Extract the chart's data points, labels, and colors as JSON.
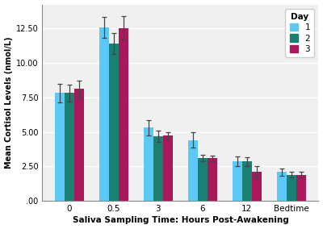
{
  "categories": [
    "0",
    "0.5",
    "3",
    "6",
    "12",
    "Bedtime"
  ],
  "day1_values": [
    7.8,
    12.55,
    5.3,
    4.4,
    2.9,
    2.1
  ],
  "day2_values": [
    7.8,
    11.4,
    4.7,
    3.1,
    2.85,
    1.9
  ],
  "day3_values": [
    8.1,
    12.5,
    4.75,
    3.1,
    2.1,
    1.9
  ],
  "day1_errors": [
    0.65,
    0.75,
    0.55,
    0.55,
    0.35,
    0.25
  ],
  "day2_errors": [
    0.6,
    0.75,
    0.4,
    0.25,
    0.3,
    0.2
  ],
  "day3_errors": [
    0.6,
    0.85,
    0.25,
    0.2,
    0.45,
    0.2
  ],
  "day1_color": "#5BC8F5",
  "day2_color": "#1A8073",
  "day3_color": "#A8185A",
  "xlabel": "Saliva Sampling Time: Hours Post-Awakening",
  "ylabel": "Mean Cortisol Levels (nmol/L)",
  "ylim": [
    0,
    14.2
  ],
  "yticks": [
    0.0,
    2.5,
    5.0,
    7.5,
    10.0,
    12.5
  ],
  "ytick_labels": [
    ".00",
    "2.50",
    "5.00",
    "7.50",
    "10.00",
    "12.50"
  ],
  "legend_title": "Day",
  "legend_labels": [
    "1",
    "2",
    "3"
  ],
  "bar_width": 0.22,
  "background_color": "#ffffff",
  "plot_bg_color": "#f0f0f0",
  "grid_color": "#ffffff"
}
